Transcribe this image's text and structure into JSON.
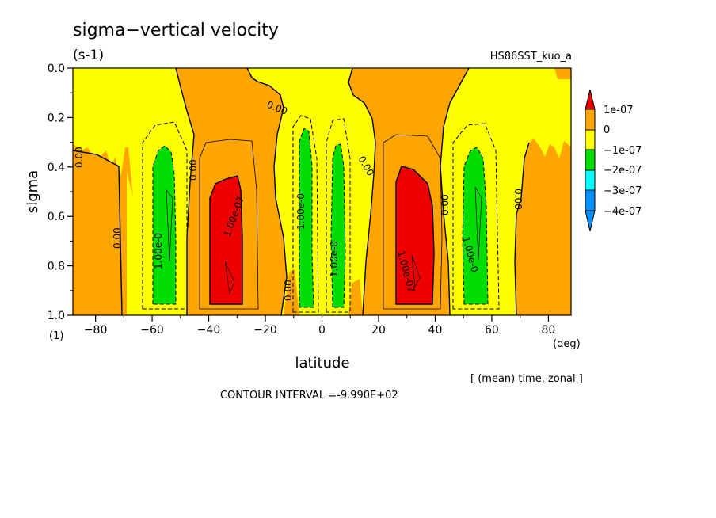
{
  "title": "sigma−vertical velocity",
  "units": "(s-1)",
  "experiment": "HS86SST_kuo_a",
  "footer": "[ (mean) time, zonal ]",
  "contour_interval": "CONTOUR INTERVAL =-9.990E+02",
  "colors": {
    "red": "#ee0000",
    "orange": "#ffa500",
    "yellow": "#ffff00",
    "green": "#00dd00",
    "cyan": "#00ffff",
    "blue": "#0090ff"
  },
  "chart_data": {
    "type": "heatmap",
    "title": "sigma−vertical velocity",
    "xlabel": "latitude",
    "ylabel": "sigma",
    "x_unit": "(deg)",
    "y_unit": "(1)",
    "xlim": [
      -88,
      88
    ],
    "ylim": [
      0.0,
      1.0
    ],
    "y_inverted": true,
    "x_ticks": [
      "−80",
      "−60",
      "−40",
      "−20",
      "0",
      "20",
      "40",
      "60",
      "80"
    ],
    "x_tick_values": [
      -80,
      -60,
      -40,
      -20,
      0,
      20,
      40,
      60,
      80
    ],
    "y_ticks": [
      "0.0",
      "0.2",
      "0.4",
      "0.6",
      "0.8",
      "1.0"
    ],
    "y_tick_values": [
      0.0,
      0.2,
      0.4,
      0.6,
      0.8,
      1.0
    ],
    "colorbar": {
      "labels": [
        "1e-07",
        "0",
        "−1e-07",
        "−2e-07",
        "−3e-07",
        "−4e-07"
      ],
      "levels": [
        1e-07,
        0,
        -1e-07,
        -2e-07,
        -3e-07,
        -4e-07
      ]
    },
    "contour_labels": [
      "0.00",
      "0.00",
      "0.00",
      "0.00",
      "0.00",
      "0.00",
      "0.00",
      "0.00",
      "0.00",
      "1.00e-07",
      "1.00e-07",
      "1.00e-0",
      "1.00e-0",
      "1.00e-0",
      "1.00e-0",
      "1.00e-0",
      "1.00e-0"
    ],
    "regions": [
      {
        "band": "> 1e-07",
        "lat_range": [
          -42,
          -25
        ],
        "sigma_range": [
          0.43,
          0.95
        ]
      },
      {
        "band": "> 1e-07",
        "lat_range": [
          27,
          42
        ],
        "sigma_range": [
          0.39,
          0.95
        ]
      },
      {
        "band": "-2e-07 to -1e-07",
        "lat_range": [
          -60,
          -50
        ],
        "sigma_range": [
          0.32,
          0.95
        ]
      },
      {
        "band": "-2e-07 to -1e-07",
        "lat_range": [
          -8,
          -4
        ],
        "sigma_range": [
          0.25,
          0.96
        ]
      },
      {
        "band": "-2e-07 to -1e-07",
        "lat_range": [
          4,
          8
        ],
        "sigma_range": [
          0.32,
          0.96
        ]
      },
      {
        "band": "-2e-07 to -1e-07",
        "lat_range": [
          51,
          60
        ],
        "sigma_range": [
          0.32,
          0.95
        ]
      }
    ]
  }
}
